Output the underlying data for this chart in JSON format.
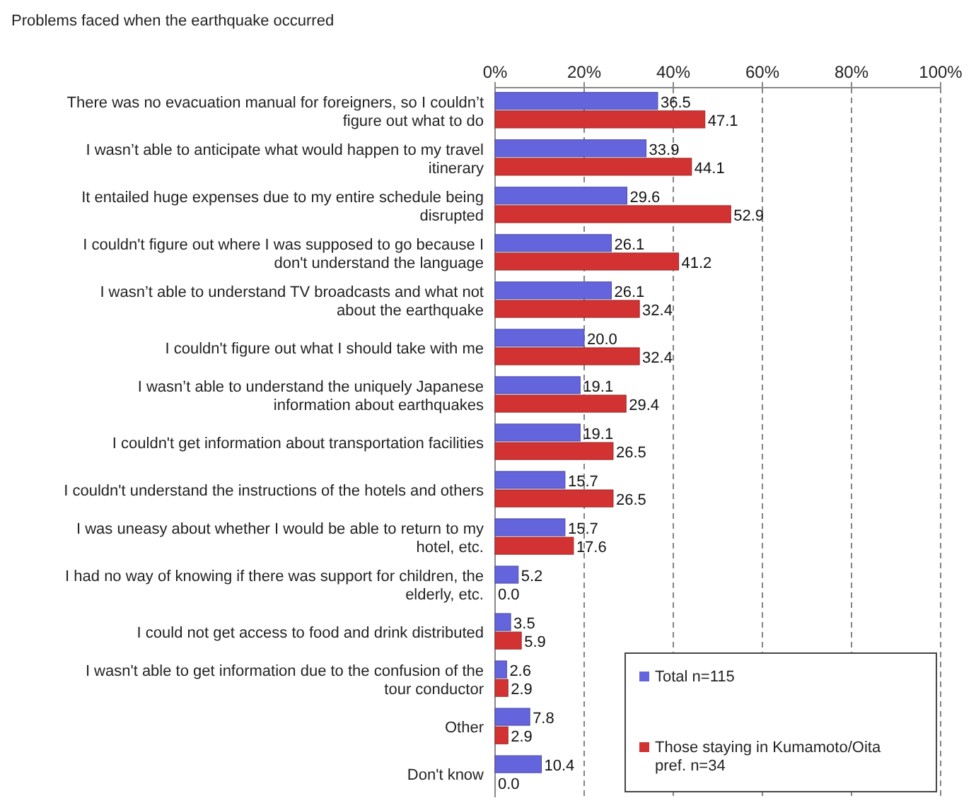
{
  "chart_data": {
    "type": "bar",
    "orientation": "horizontal",
    "title": "Problems faced when the earthquake occurred",
    "categories": [
      "There was no evacuation manual for foreigners, so I couldn’t figure out what to do",
      "I wasn’t able to anticipate what would happen to my travel itinerary",
      "It entailed huge expenses due to my entire schedule being disrupted",
      "I couldn't figure out where I was supposed to go because I don't understand the language",
      "I wasn’t able to understand TV broadcasts and what not about the earthquake",
      "I couldn't figure out what I should take with me",
      "I wasn’t able to understand the uniquely Japanese information about earthquakes",
      "I couldn't get information about transportation facilities",
      "I couldn't understand the instructions of the hotels and others",
      "I was uneasy about whether I would be able to return to my hotel, etc.",
      "I had no way of knowing if there was support for children, the elderly, etc.",
      "I could not get access to food and drink distributed",
      "I wasn't able to get information due to the confusion of the tour conductor",
      "Other",
      "Don't know"
    ],
    "series": [
      {
        "name": "Total n=115",
        "color": "#6464dc",
        "values": [
          36.5,
          33.9,
          29.6,
          26.1,
          26.1,
          20.0,
          19.1,
          19.1,
          15.7,
          15.7,
          5.2,
          3.5,
          2.6,
          7.8,
          10.4
        ],
        "value_labels": [
          "36.5",
          "33.9",
          "29.6",
          "26.1",
          "26.1",
          "20.0",
          "19.1",
          "19.1",
          "15.7",
          "15.7",
          "5.2",
          "3.5",
          "2.6",
          "7.8",
          "10.4"
        ]
      },
      {
        "name": "Those staying in Kumamoto/Oita pref. n=34",
        "color": "#d23232",
        "values": [
          47.1,
          44.1,
          52.9,
          41.2,
          32.4,
          32.4,
          29.4,
          26.5,
          26.5,
          17.6,
          0.0,
          5.9,
          2.9,
          2.9,
          0.0
        ],
        "value_labels": [
          "47.1",
          "44.1",
          "52.9",
          "41.2",
          "32.4",
          "32.4",
          "29.4",
          "26.5",
          "26.5",
          "17.6",
          "0.0",
          "5.9",
          "2.9",
          "2.9",
          "0.0"
        ]
      }
    ],
    "xlim": [
      0,
      100
    ],
    "xticks": [
      {
        "value": 0,
        "label": "0%"
      },
      {
        "value": 20,
        "label": "20%"
      },
      {
        "value": 40,
        "label": "40%"
      },
      {
        "value": 60,
        "label": "60%"
      },
      {
        "value": 80,
        "label": "80%"
      },
      {
        "value": 100,
        "label": "100%"
      }
    ],
    "grid": "x",
    "legend": "bottom right"
  }
}
